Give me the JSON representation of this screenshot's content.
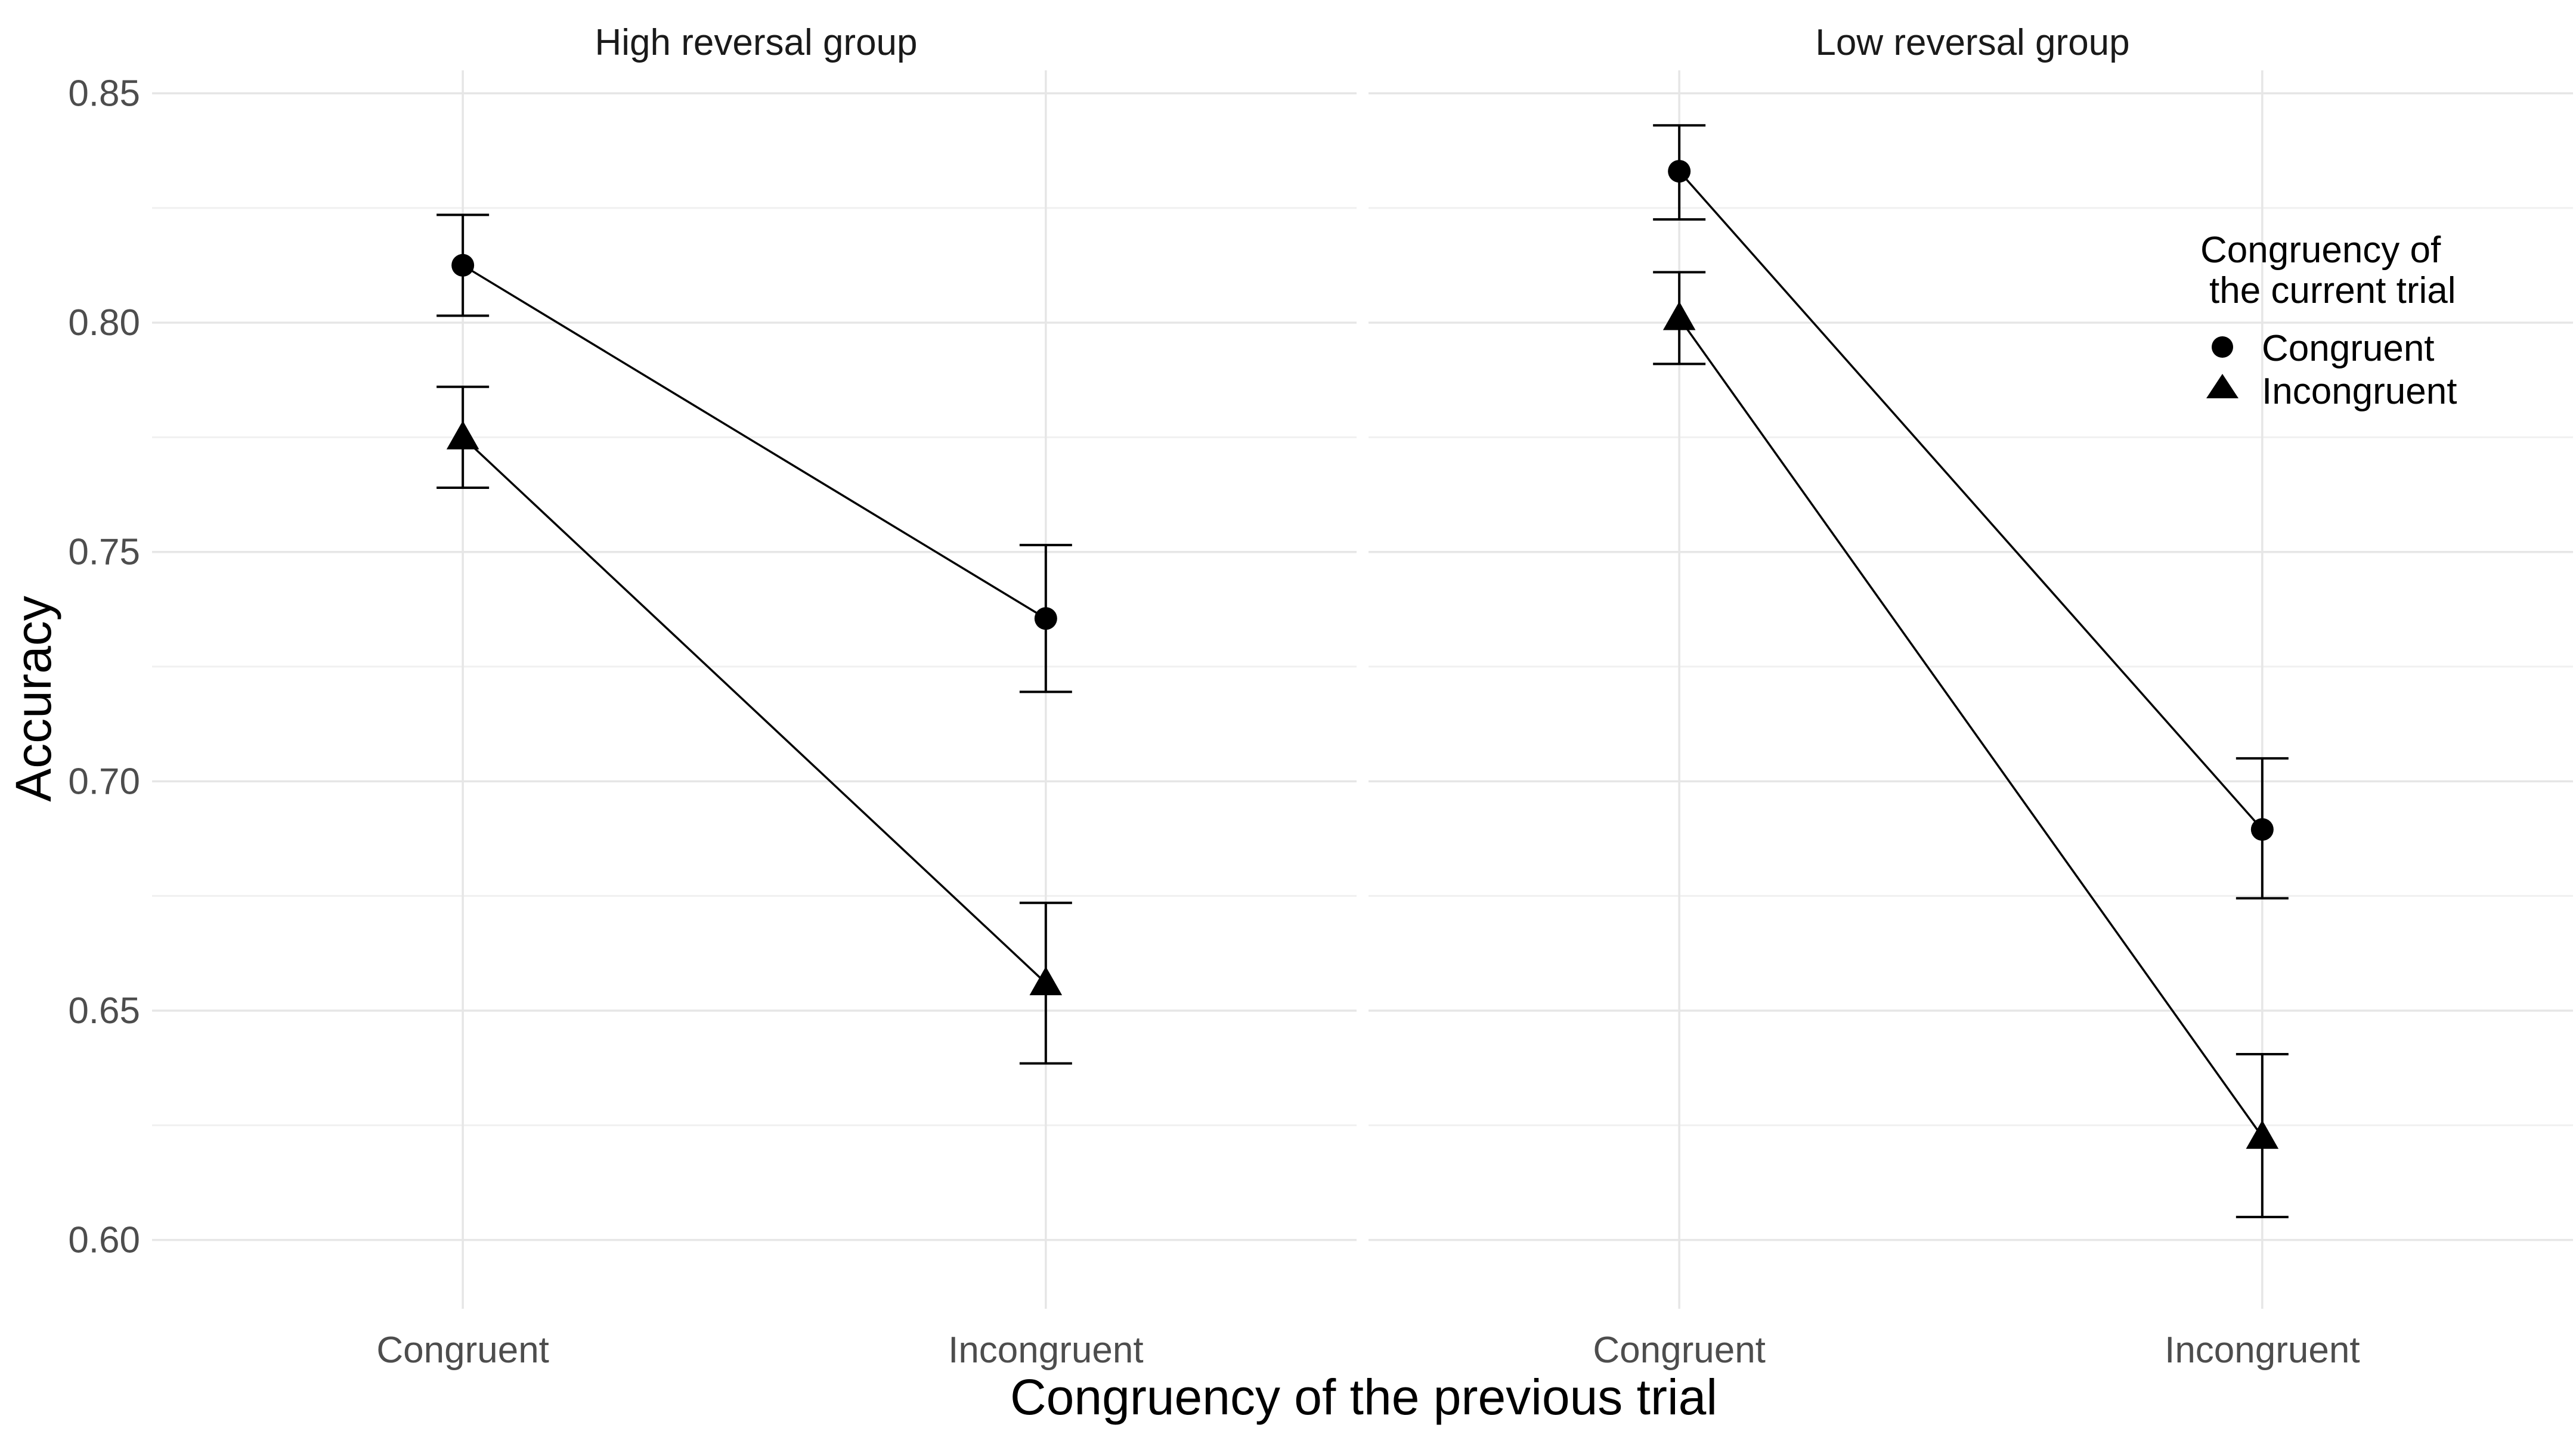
{
  "chart_data": {
    "type": "line",
    "xlabel": "Congruency of the previous trial",
    "ylabel": "Accuracy",
    "ylim": [
      0.585,
      0.855
    ],
    "y_ticks": [
      "0.60",
      "0.65",
      "0.70",
      "0.75",
      "0.80",
      "0.85"
    ],
    "grid": true,
    "categories": [
      "Congruent",
      "Incongruent"
    ],
    "legend": {
      "title_line1": "Congruency of",
      "title_line2": "the current trial",
      "placement": "top-right",
      "entries": [
        {
          "label": "Congruent",
          "shape": "circle"
        },
        {
          "label": "Incongruent",
          "shape": "triangle"
        }
      ]
    },
    "facets": [
      {
        "title": "High reversal group",
        "series": [
          {
            "name": "Congruent",
            "shape": "circle",
            "values": [
              0.8125,
              0.7355
            ],
            "error_low": [
              0.8015,
              0.7195
            ],
            "error_high": [
              0.8235,
              0.7515
            ]
          },
          {
            "name": "Incongruent",
            "shape": "triangle",
            "values": [
              0.775,
              0.656
            ],
            "error_low": [
              0.764,
              0.6385
            ],
            "error_high": [
              0.786,
              0.6735
            ]
          }
        ]
      },
      {
        "title": "Low reversal group",
        "series": [
          {
            "name": "Congruent",
            "shape": "circle",
            "values": [
              0.833,
              0.6895
            ],
            "error_low": [
              0.8225,
              0.6745
            ],
            "error_high": [
              0.843,
              0.705
            ]
          },
          {
            "name": "Incongruent",
            "shape": "triangle",
            "values": [
              0.801,
              0.6225
            ],
            "error_low": [
              0.791,
              0.605
            ],
            "error_high": [
              0.811,
              0.6405
            ]
          }
        ]
      }
    ],
    "colors": {
      "line": "#000000",
      "grid": "#e6e6e6"
    }
  }
}
